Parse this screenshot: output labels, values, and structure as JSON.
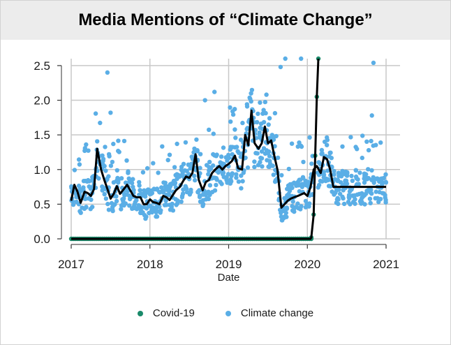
{
  "chart_data": {
    "type": "scatter",
    "title": "Media Mentions of “Climate Change”",
    "xlabel": "Date",
    "ylabel": "",
    "x_ticks": [
      "2017",
      "2018",
      "2019",
      "2020",
      "2021"
    ],
    "y_ticks": [
      "0.0",
      "0.5",
      "1.0",
      "1.5",
      "2.0",
      "2.5"
    ],
    "xlim": [
      2017.0,
      2021.0
    ],
    "ylim": [
      0,
      2.6
    ],
    "grid": true,
    "legend_position": "bottom",
    "series": [
      {
        "name": "Covid-19",
        "kind": "points",
        "color": "#1a8a6a",
        "note": "zero until early 2020, then rises steeply off scale",
        "points": [
          [
            2017.0,
            0
          ],
          [
            2017.25,
            0
          ],
          [
            2017.5,
            0
          ],
          [
            2017.75,
            0
          ],
          [
            2018.0,
            0
          ],
          [
            2018.25,
            0
          ],
          [
            2018.5,
            0
          ],
          [
            2018.75,
            0
          ],
          [
            2019.0,
            0
          ],
          [
            2019.25,
            0
          ],
          [
            2019.5,
            0
          ],
          [
            2019.75,
            0
          ],
          [
            2020.0,
            0
          ],
          [
            2020.05,
            0.02
          ],
          [
            2020.08,
            0.35
          ],
          [
            2020.1,
            1.2
          ],
          [
            2020.12,
            2.05
          ],
          [
            2020.14,
            2.6
          ]
        ]
      },
      {
        "name": "Climate change",
        "kind": "points",
        "color": "#5aaee6",
        "trend_x": [
          2017.0,
          2017.04,
          2017.08,
          2017.12,
          2017.17,
          2017.21,
          2017.25,
          2017.29,
          2017.33,
          2017.38,
          2017.42,
          2017.46,
          2017.5,
          2017.54,
          2017.58,
          2017.62,
          2017.67,
          2017.71,
          2017.75,
          2017.79,
          2017.83,
          2017.88,
          2017.92,
          2017.96,
          2018.0,
          2018.04,
          2018.08,
          2018.12,
          2018.17,
          2018.21,
          2018.25,
          2018.29,
          2018.33,
          2018.38,
          2018.42,
          2018.46,
          2018.5,
          2018.54,
          2018.58,
          2018.62,
          2018.67,
          2018.71,
          2018.75,
          2018.79,
          2018.83,
          2018.88,
          2018.92,
          2018.96,
          2019.0,
          2019.04,
          2019.08,
          2019.12,
          2019.17,
          2019.21,
          2019.25,
          2019.29,
          2019.33,
          2019.38,
          2019.42,
          2019.46,
          2019.5,
          2019.54,
          2019.58,
          2019.62,
          2019.67,
          2019.71,
          2019.75,
          2019.79,
          2019.83,
          2019.88,
          2019.92,
          2019.96,
          2020.0,
          2020.04,
          2020.08,
          2020.12,
          2020.17,
          2020.21,
          2020.25,
          2020.29,
          2020.33,
          2020.38,
          2020.42,
          2020.46,
          2020.5,
          2020.54,
          2020.58,
          2020.62,
          2020.67,
          2020.71,
          2020.75,
          2020.79,
          2020.83,
          2020.88,
          2020.92,
          2020.96,
          2021.0
        ],
        "trend_y": [
          0.55,
          0.78,
          0.68,
          0.52,
          0.68,
          0.66,
          0.62,
          0.72,
          1.3,
          1.0,
          0.85,
          0.72,
          0.58,
          0.65,
          0.76,
          0.65,
          0.72,
          0.78,
          0.7,
          0.62,
          0.6,
          0.6,
          0.5,
          0.5,
          0.57,
          0.53,
          0.52,
          0.5,
          0.62,
          0.6,
          0.56,
          0.63,
          0.7,
          0.75,
          0.83,
          0.9,
          0.88,
          0.95,
          1.22,
          0.85,
          0.7,
          0.82,
          0.85,
          0.95,
          1.0,
          1.05,
          1.0,
          1.05,
          1.08,
          1.12,
          1.2,
          1.02,
          1.0,
          1.5,
          1.35,
          1.85,
          1.38,
          1.3,
          1.38,
          1.62,
          1.38,
          1.42,
          1.2,
          1.0,
          0.45,
          0.5,
          0.55,
          0.58,
          0.6,
          0.62,
          0.64,
          0.66,
          0.62,
          0.75,
          1.0,
          1.05,
          0.95,
          1.18,
          1.15,
          1.0,
          0.75,
          0.75,
          0.75,
          0.75,
          0.75,
          0.75,
          0.75,
          0.75,
          0.75,
          0.75,
          0.75,
          0.75,
          0.75,
          0.75,
          0.75,
          0.75,
          0.75
        ]
      },
      {
        "name": "Trend",
        "kind": "line",
        "color": "#000000"
      }
    ]
  },
  "legend": {
    "items": [
      {
        "label": "Covid-19",
        "color": "#1a8a6a"
      },
      {
        "label": "Climate change",
        "color": "#5aaee6"
      }
    ]
  }
}
